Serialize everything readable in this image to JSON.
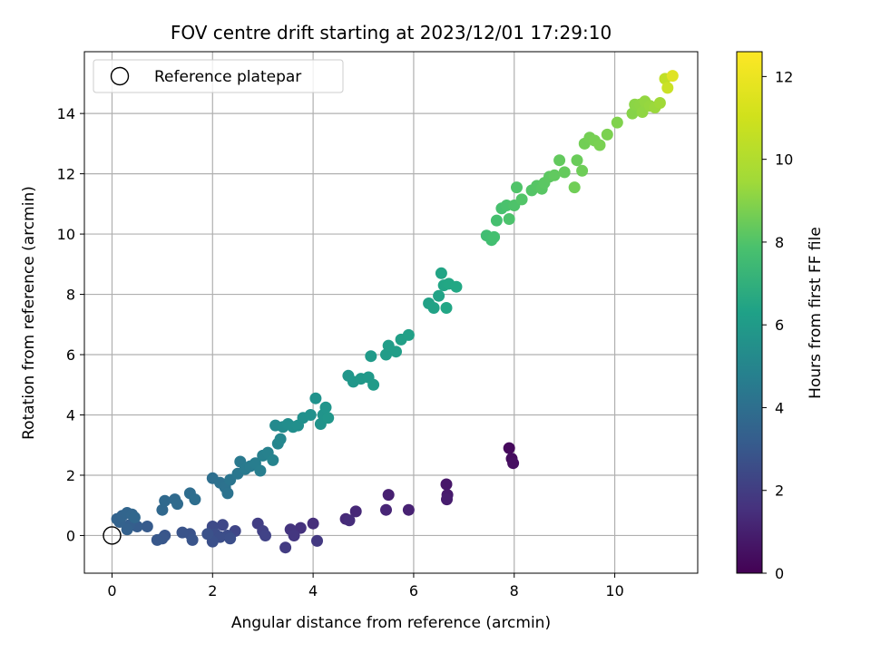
{
  "chart_data": {
    "type": "scatter",
    "title": "FOV centre drift starting at 2023/12/01 17:29:10",
    "xlabel": "Angular distance from reference (arcmin)",
    "ylabel": "Rotation from reference (arcmin)",
    "xlim": [
      -0.55,
      11.65
    ],
    "ylim": [
      -1.25,
      16.05
    ],
    "x_ticks": [
      0,
      2,
      4,
      6,
      8,
      10
    ],
    "y_ticks": [
      0,
      2,
      4,
      6,
      8,
      10,
      12,
      14
    ],
    "grid": true,
    "legend": {
      "placement": "top-left",
      "entries": [
        "Reference platepar"
      ]
    },
    "colorbar": {
      "label": "Hours from first FF file",
      "range": [
        0,
        12.6
      ],
      "ticks": [
        0,
        2,
        4,
        6,
        8,
        10,
        12
      ],
      "colormap": "viridis"
    },
    "reference_point": {
      "x": 0,
      "y": 0
    },
    "series": [
      {
        "color_by": "hours",
        "points": [
          [
            7.9,
            2.9,
            0.3
          ],
          [
            7.95,
            2.55,
            0.4
          ],
          [
            7.98,
            2.4,
            0.5
          ],
          [
            6.65,
            1.7,
            0.8
          ],
          [
            6.67,
            1.35,
            0.9
          ],
          [
            6.66,
            1.2,
            1.0
          ],
          [
            5.5,
            1.35,
            1.1
          ],
          [
            5.9,
            0.85,
            1.2
          ],
          [
            5.45,
            0.85,
            1.3
          ],
          [
            4.85,
            0.8,
            1.4
          ],
          [
            4.65,
            0.55,
            1.5
          ],
          [
            4.72,
            0.5,
            1.6
          ],
          [
            4.0,
            0.4,
            1.7
          ],
          [
            3.75,
            0.25,
            1.8
          ],
          [
            3.55,
            0.2,
            1.9
          ],
          [
            3.62,
            0.0,
            2.0
          ],
          [
            4.08,
            -0.18,
            2.1
          ],
          [
            3.45,
            -0.4,
            2.2
          ],
          [
            2.9,
            0.4,
            2.3
          ],
          [
            3.0,
            0.15,
            2.4
          ],
          [
            3.05,
            0.0,
            2.5
          ],
          [
            2.45,
            0.15,
            2.6
          ],
          [
            2.2,
            0.35,
            2.7
          ],
          [
            2.0,
            0.3,
            2.8
          ],
          [
            2.3,
            0.0,
            2.9
          ],
          [
            2.05,
            0.05,
            2.95
          ],
          [
            2.15,
            -0.05,
            3.0
          ],
          [
            2.35,
            -0.1,
            3.05
          ],
          [
            2.0,
            -0.2,
            3.1
          ],
          [
            1.9,
            0.05,
            3.15
          ],
          [
            1.55,
            0.05,
            3.2
          ],
          [
            1.4,
            0.1,
            3.25
          ],
          [
            1.6,
            -0.15,
            3.3
          ],
          [
            1.05,
            0.0,
            3.35
          ],
          [
            1.0,
            -0.1,
            3.4
          ],
          [
            0.9,
            -0.15,
            3.45
          ],
          [
            0.7,
            0.3,
            3.6
          ],
          [
            0.5,
            0.3,
            3.7
          ],
          [
            0.35,
            0.35,
            3.8
          ],
          [
            0.3,
            0.2,
            3.9
          ],
          [
            0.15,
            0.45,
            3.95
          ],
          [
            0.1,
            0.55,
            4.0
          ],
          [
            0.2,
            0.65,
            4.05
          ],
          [
            0.3,
            0.75,
            4.1
          ],
          [
            0.4,
            0.7,
            4.15
          ],
          [
            0.45,
            0.6,
            4.2
          ],
          [
            1.0,
            0.85,
            4.25
          ],
          [
            1.05,
            1.15,
            4.3
          ],
          [
            1.25,
            1.2,
            4.35
          ],
          [
            1.3,
            1.05,
            4.4
          ],
          [
            1.55,
            1.4,
            4.5
          ],
          [
            1.65,
            1.2,
            4.55
          ],
          [
            2.0,
            1.9,
            4.6
          ],
          [
            2.15,
            1.75,
            4.7
          ],
          [
            2.25,
            1.6,
            4.75
          ],
          [
            2.3,
            1.4,
            4.8
          ],
          [
            2.35,
            1.85,
            4.9
          ],
          [
            2.5,
            2.05,
            5.0
          ],
          [
            2.55,
            2.45,
            5.1
          ],
          [
            2.65,
            2.2,
            5.15
          ],
          [
            2.75,
            2.3,
            5.2
          ],
          [
            2.85,
            2.4,
            5.3
          ],
          [
            2.95,
            2.15,
            5.35
          ],
          [
            3.0,
            2.65,
            5.45
          ],
          [
            3.1,
            2.75,
            5.5
          ],
          [
            3.2,
            2.5,
            5.6
          ],
          [
            3.3,
            3.05,
            5.7
          ],
          [
            3.35,
            3.2,
            5.8
          ],
          [
            3.25,
            3.65,
            5.9
          ],
          [
            3.4,
            3.6,
            6.0
          ],
          [
            3.5,
            3.7,
            6.1
          ],
          [
            3.6,
            3.6,
            6.15
          ],
          [
            3.7,
            3.65,
            6.2
          ],
          [
            3.8,
            3.9,
            6.25
          ],
          [
            3.95,
            4.0,
            6.3
          ],
          [
            4.05,
            4.55,
            6.35
          ],
          [
            4.15,
            3.7,
            6.4
          ],
          [
            4.2,
            4.0,
            6.45
          ],
          [
            4.25,
            4.25,
            6.5
          ],
          [
            4.3,
            3.9,
            6.55
          ],
          [
            4.7,
            5.3,
            6.6
          ],
          [
            4.8,
            5.1,
            6.65
          ],
          [
            4.95,
            5.2,
            6.7
          ],
          [
            5.1,
            5.25,
            6.75
          ],
          [
            5.15,
            5.95,
            6.8
          ],
          [
            5.2,
            5.0,
            6.85
          ],
          [
            5.45,
            6.0,
            6.9
          ],
          [
            5.5,
            6.3,
            6.95
          ],
          [
            5.65,
            6.1,
            7.0
          ],
          [
            5.75,
            6.5,
            7.05
          ],
          [
            5.9,
            6.65,
            7.1
          ],
          [
            6.3,
            7.7,
            7.2
          ],
          [
            6.4,
            7.55,
            7.25
          ],
          [
            6.5,
            7.95,
            7.3
          ],
          [
            6.55,
            8.7,
            7.35
          ],
          [
            6.6,
            8.3,
            7.4
          ],
          [
            6.65,
            7.55,
            7.45
          ],
          [
            6.7,
            8.35,
            7.5
          ],
          [
            6.85,
            8.25,
            7.55
          ],
          [
            7.45,
            9.95,
            8.7
          ],
          [
            7.55,
            9.8,
            8.75
          ],
          [
            7.6,
            9.9,
            8.8
          ],
          [
            7.65,
            10.45,
            8.85
          ],
          [
            7.75,
            10.85,
            8.9
          ],
          [
            7.85,
            10.95,
            8.95
          ],
          [
            7.9,
            10.5,
            9.0
          ],
          [
            8.0,
            10.95,
            9.05
          ],
          [
            8.05,
            11.55,
            9.1
          ],
          [
            8.15,
            11.15,
            9.15
          ],
          [
            8.35,
            11.45,
            9.2
          ],
          [
            8.45,
            11.6,
            9.25
          ],
          [
            8.55,
            11.5,
            9.3
          ],
          [
            8.6,
            11.7,
            9.35
          ],
          [
            8.7,
            11.9,
            9.4
          ],
          [
            8.8,
            11.95,
            9.5
          ],
          [
            8.9,
            12.45,
            9.55
          ],
          [
            9.0,
            12.05,
            9.6
          ],
          [
            9.25,
            12.45,
            9.7
          ],
          [
            9.35,
            12.1,
            9.8
          ],
          [
            9.2,
            11.55,
            9.85
          ],
          [
            9.4,
            13.0,
            9.9
          ],
          [
            9.5,
            13.2,
            9.95
          ],
          [
            9.6,
            13.1,
            10.0
          ],
          [
            9.7,
            12.95,
            10.05
          ],
          [
            9.85,
            13.3,
            10.1
          ],
          [
            10.05,
            13.7,
            10.2
          ],
          [
            10.35,
            14.0,
            10.3
          ],
          [
            10.4,
            14.3,
            10.4
          ],
          [
            10.5,
            14.3,
            10.45
          ],
          [
            10.55,
            14.05,
            10.5
          ],
          [
            10.6,
            14.4,
            10.55
          ],
          [
            10.7,
            14.25,
            10.6
          ],
          [
            10.8,
            14.2,
            10.7
          ],
          [
            10.9,
            14.35,
            10.8
          ],
          [
            11.0,
            15.15,
            11.4
          ],
          [
            11.05,
            14.85,
            11.6
          ],
          [
            11.15,
            15.25,
            12.0
          ]
        ]
      }
    ]
  }
}
